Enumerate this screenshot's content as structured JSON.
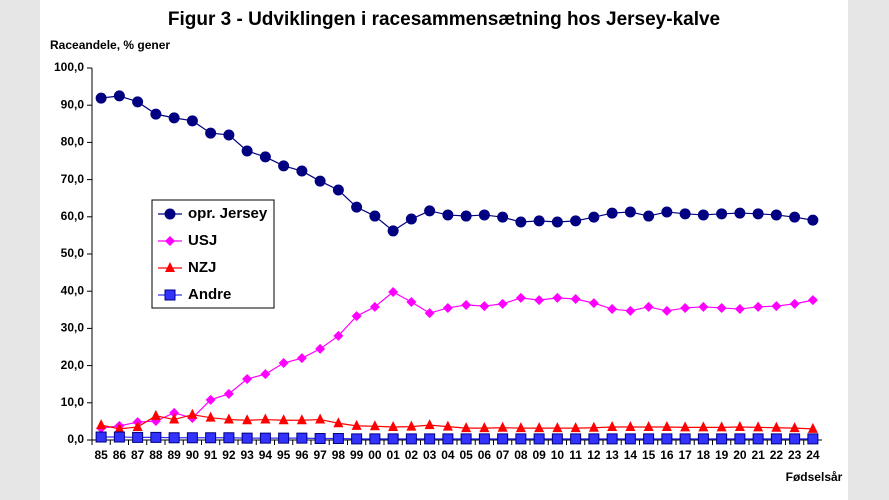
{
  "chart_data": {
    "type": "line",
    "title": "Figur 3 - Udviklingen i racesammensætning hos Jersey-kalve",
    "y_label": "Raceandele, % gener",
    "x_label": "Fødselsår",
    "categories": [
      "85",
      "86",
      "87",
      "88",
      "89",
      "90",
      "91",
      "92",
      "93",
      "94",
      "95",
      "96",
      "97",
      "98",
      "99",
      "00",
      "01",
      "02",
      "03",
      "04",
      "05",
      "06",
      "07",
      "08",
      "09",
      "10",
      "11",
      "12",
      "13",
      "14",
      "15",
      "16",
      "17",
      "18",
      "19",
      "20",
      "21",
      "22",
      "23",
      "24"
    ],
    "ylim": [
      0,
      100
    ],
    "yticks": [
      {
        "value": 0,
        "label": "0,0"
      },
      {
        "value": 10,
        "label": "10,0"
      },
      {
        "value": 20,
        "label": "20,0"
      },
      {
        "value": 30,
        "label": "30,0"
      },
      {
        "value": 40,
        "label": "40,0"
      },
      {
        "value": 50,
        "label": "50,0"
      },
      {
        "value": 60,
        "label": "60,0"
      },
      {
        "value": 70,
        "label": "70,0"
      },
      {
        "value": 80,
        "label": "80,0"
      },
      {
        "value": 90,
        "label": "90,0"
      },
      {
        "value": 100,
        "label": "100,0"
      }
    ],
    "legend": "left",
    "series": [
      {
        "name": "opr. Jersey",
        "color": "#000080",
        "marker": "circle",
        "values": [
          91.9,
          92.5,
          90.9,
          87.6,
          86.6,
          85.8,
          82.5,
          82.0,
          77.7,
          76.1,
          73.7,
          72.3,
          69.6,
          67.2,
          62.6,
          60.2,
          56.2,
          59.4,
          61.6,
          60.5,
          60.2,
          60.5,
          59.9,
          58.6,
          58.9,
          58.6,
          58.9,
          59.9,
          61.0,
          61.3,
          60.2,
          61.3,
          60.8,
          60.5,
          60.8,
          61.0,
          60.8,
          60.5,
          59.9,
          59.1
        ]
      },
      {
        "name": "USJ",
        "color": "#ff00ff",
        "marker": "diamond",
        "values": [
          3.2,
          3.8,
          4.8,
          5.1,
          7.3,
          5.9,
          10.8,
          12.4,
          16.4,
          17.7,
          20.7,
          22.0,
          24.5,
          28.0,
          33.3,
          35.8,
          39.8,
          37.1,
          34.1,
          35.5,
          36.3,
          36.0,
          36.6,
          38.2,
          37.6,
          38.2,
          37.9,
          36.8,
          35.2,
          34.7,
          35.8,
          34.7,
          35.5,
          35.8,
          35.5,
          35.2,
          35.8,
          36.0,
          36.6,
          37.6
        ]
      },
      {
        "name": "NZJ",
        "color": "#ff0000",
        "marker": "triangle",
        "values": [
          4.0,
          3.0,
          3.5,
          6.5,
          5.5,
          6.8,
          6.0,
          5.5,
          5.3,
          5.5,
          5.3,
          5.3,
          5.5,
          4.5,
          3.8,
          3.7,
          3.5,
          3.6,
          4.0,
          3.6,
          3.2,
          3.2,
          3.3,
          3.2,
          3.2,
          3.2,
          3.2,
          3.3,
          3.5,
          3.5,
          3.5,
          3.5,
          3.4,
          3.4,
          3.4,
          3.5,
          3.4,
          3.3,
          3.2,
          3.0
        ]
      },
      {
        "name": "Andre",
        "color": "#3333ff",
        "marker": "square",
        "values": [
          0.8,
          0.8,
          0.7,
          0.7,
          0.6,
          0.6,
          0.6,
          0.6,
          0.5,
          0.5,
          0.5,
          0.5,
          0.4,
          0.4,
          0.3,
          0.3,
          0.3,
          0.3,
          0.3,
          0.3,
          0.3,
          0.3,
          0.3,
          0.3,
          0.3,
          0.3,
          0.3,
          0.3,
          0.3,
          0.3,
          0.3,
          0.3,
          0.3,
          0.3,
          0.3,
          0.3,
          0.3,
          0.3,
          0.3,
          0.3
        ]
      }
    ]
  }
}
